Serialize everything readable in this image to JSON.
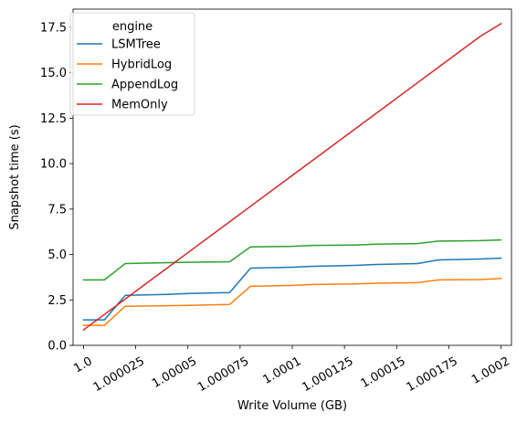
{
  "chart_data": {
    "type": "line",
    "xlabel": "Write Volume (GB)",
    "ylabel": "Snapshot time (s)",
    "xlim": [
      0.999995,
      1.000205
    ],
    "ylim": [
      0.0,
      18.5
    ],
    "x": [
      1.0,
      1.00001,
      1.00002,
      1.00004,
      1.00005,
      1.00007,
      1.00008,
      1.0001,
      1.00011,
      1.00013,
      1.00014,
      1.00016,
      1.00017,
      1.00019,
      1.0002
    ],
    "xticks": [
      1.0,
      1.000025,
      1.00005,
      1.000075,
      1.0001,
      1.000125,
      1.00015,
      1.000175,
      1.0002
    ],
    "xtick_labels": [
      "1.0",
      "1.000025",
      "1.00005",
      "1.000075",
      "1.0001",
      "1.000125",
      "1.00015",
      "1.000175",
      "1.0002"
    ],
    "yticks": [
      0.0,
      2.5,
      5.0,
      7.5,
      10.0,
      12.5,
      15.0,
      17.5
    ],
    "ytick_labels": [
      "0.0",
      "2.5",
      "5.0",
      "7.5",
      "10.0",
      "12.5",
      "15.0",
      "17.5"
    ],
    "grid": false,
    "legend": {
      "title": "engine",
      "placement": "upper-left"
    },
    "series": [
      {
        "name": "LSMTree",
        "color": "#1f77b4",
        "values": [
          1.4,
          1.4,
          2.75,
          2.8,
          2.85,
          2.9,
          4.25,
          4.3,
          4.35,
          4.4,
          4.45,
          4.5,
          4.7,
          4.75,
          4.8
        ]
      },
      {
        "name": "HybridLog",
        "color": "#ff7f0e",
        "values": [
          1.1,
          1.1,
          2.15,
          2.18,
          2.2,
          2.25,
          3.25,
          3.3,
          3.35,
          3.38,
          3.42,
          3.45,
          3.6,
          3.62,
          3.68
        ]
      },
      {
        "name": "AppendLog",
        "color": "#2ca02c",
        "values": [
          3.6,
          3.6,
          4.5,
          4.55,
          4.57,
          4.6,
          5.42,
          5.45,
          5.5,
          5.52,
          5.57,
          5.6,
          5.74,
          5.76,
          5.8
        ]
      },
      {
        "name": "MemOnly",
        "color": "#d62728",
        "values": [
          0.85,
          1.7,
          2.55,
          4.25,
          5.1,
          6.8,
          7.65,
          9.35,
          10.2,
          11.9,
          12.75,
          14.45,
          15.3,
          17.0,
          17.7
        ]
      }
    ]
  }
}
